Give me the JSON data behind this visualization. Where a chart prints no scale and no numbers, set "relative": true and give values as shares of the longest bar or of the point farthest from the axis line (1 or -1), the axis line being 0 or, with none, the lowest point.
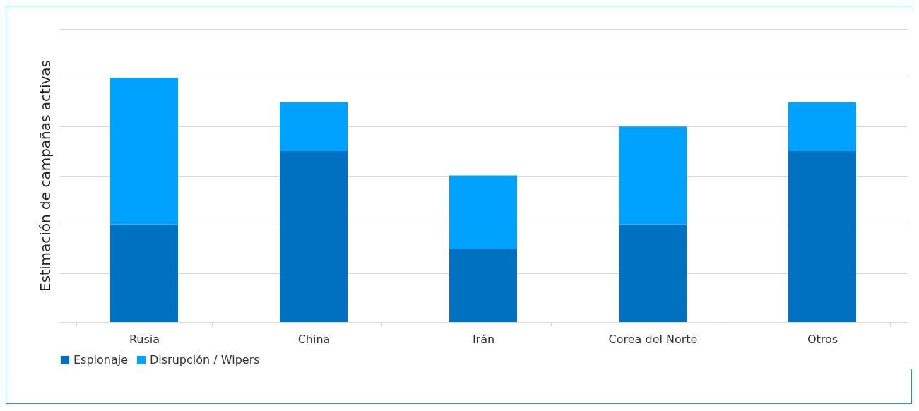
{
  "chart_data": {
    "type": "bar",
    "ylabel": "Estimación de campañas activas",
    "categories": [
      "Rusia",
      "China",
      "Irán",
      "Corea del Norte",
      "Otros"
    ],
    "stacked": true,
    "relative": true,
    "grid": "y",
    "legend": "bottom",
    "series": [
      {
        "name": "Espionaje",
        "color": "#0070c0",
        "values": [
          0.4,
          0.7,
          0.3,
          0.4,
          0.7
        ]
      },
      {
        "name": "Disrupción / Wipers",
        "color": "#00a2ff",
        "values": [
          0.6,
          0.2,
          0.3,
          0.4,
          0.2
        ]
      }
    ]
  }
}
